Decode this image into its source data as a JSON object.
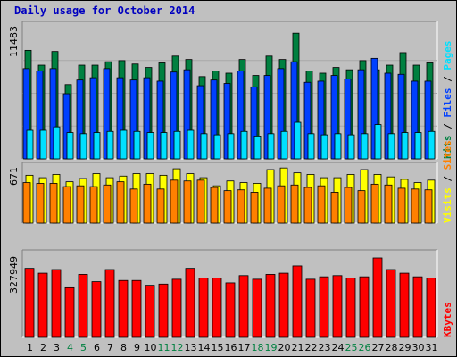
{
  "title": "Daily usage for October 2014",
  "colors": {
    "background": "#c0c0c0",
    "title": "#0000c0",
    "hits": "#008040",
    "files": "#0040ff",
    "pages": "#00e0ff",
    "visits": "#ffff00",
    "sites": "#ff8000",
    "kbytes": "#ff0000",
    "weekday_label": "#000000",
    "weekend_label": "#008040"
  },
  "legend": {
    "pages": "Pages",
    "files": "Files",
    "hits": "Hits",
    "sites": "Sites",
    "visits": "Visits",
    "kbytes": "KBytes",
    "sep": " / "
  },
  "chart_data": [
    {
      "type": "bar",
      "title": "Daily usage for October 2014",
      "max_label": "11483",
      "ylim": [
        0,
        11483
      ],
      "categories": [
        "1",
        "2",
        "3",
        "4",
        "5",
        "6",
        "7",
        "8",
        "9",
        "10",
        "11",
        "12",
        "13",
        "14",
        "15",
        "16",
        "17",
        "18",
        "19",
        "20",
        "21",
        "22",
        "23",
        "24",
        "25",
        "26",
        "27",
        "28",
        "29",
        "30",
        "31"
      ],
      "weekend_days": [
        "4",
        "5",
        "11",
        "12",
        "18",
        "19",
        "25",
        "26"
      ],
      "series": [
        {
          "name": "Hits",
          "values": [
            9500,
            8200,
            9400,
            6500,
            8200,
            8200,
            8500,
            8600,
            8300,
            8000,
            8400,
            9000,
            8700,
            7200,
            7700,
            7500,
            8700,
            7300,
            9000,
            8700,
            11000,
            7700,
            7500,
            8000,
            7800,
            8600,
            7800,
            8200,
            9300,
            8200,
            8400
          ]
        },
        {
          "name": "Files",
          "values": [
            7900,
            7700,
            7900,
            5700,
            6900,
            7100,
            7900,
            7100,
            6900,
            7100,
            6800,
            7600,
            7800,
            6400,
            6900,
            6600,
            7700,
            6300,
            7300,
            7900,
            8500,
            6700,
            6800,
            7300,
            7000,
            7800,
            8800,
            7500,
            7400,
            6800,
            6800
          ]
        },
        {
          "name": "Pages",
          "values": [
            2500,
            2500,
            2800,
            2300,
            2200,
            2300,
            2400,
            2500,
            2400,
            2300,
            2300,
            2400,
            2500,
            2200,
            2100,
            2200,
            2400,
            2000,
            2200,
            2400,
            3200,
            2200,
            2100,
            2200,
            2100,
            2200,
            3000,
            2200,
            2300,
            2300,
            2400
          ]
        }
      ]
    },
    {
      "type": "bar",
      "max_label": "671",
      "ylim": [
        0,
        671
      ],
      "categories": [
        "1",
        "2",
        "3",
        "4",
        "5",
        "6",
        "7",
        "8",
        "9",
        "10",
        "11",
        "12",
        "13",
        "14",
        "15",
        "16",
        "17",
        "18",
        "19",
        "20",
        "21",
        "22",
        "23",
        "24",
        "25",
        "26",
        "27",
        "28",
        "29",
        "30",
        "31"
      ],
      "series": [
        {
          "name": "Visits",
          "values": [
            590,
            560,
            600,
            510,
            550,
            610,
            560,
            580,
            610,
            610,
            590,
            670,
            610,
            560,
            460,
            520,
            500,
            490,
            660,
            680,
            620,
            600,
            560,
            560,
            600,
            660,
            600,
            570,
            540,
            500,
            530
          ]
        },
        {
          "name": "Sites",
          "values": [
            500,
            490,
            490,
            450,
            460,
            450,
            470,
            510,
            420,
            480,
            420,
            530,
            520,
            530,
            440,
            400,
            410,
            380,
            430,
            460,
            470,
            440,
            460,
            380,
            440,
            400,
            480,
            470,
            430,
            420,
            410
          ]
        }
      ]
    },
    {
      "type": "bar",
      "max_label": "327949",
      "ylim": [
        0,
        327949
      ],
      "categories": [
        "1",
        "2",
        "3",
        "4",
        "5",
        "6",
        "7",
        "8",
        "9",
        "10",
        "11",
        "12",
        "13",
        "14",
        "15",
        "16",
        "17",
        "18",
        "19",
        "20",
        "21",
        "22",
        "23",
        "24",
        "25",
        "26",
        "27",
        "28",
        "29",
        "30",
        "31"
      ],
      "series": [
        {
          "name": "KBytes",
          "values": [
            285000,
            265000,
            280000,
            205000,
            260000,
            230000,
            280000,
            235000,
            235000,
            215000,
            220000,
            240000,
            285000,
            245000,
            245000,
            225000,
            255000,
            240000,
            260000,
            265000,
            295000,
            240000,
            250000,
            255000,
            245000,
            250000,
            327949,
            280000,
            265000,
            250000,
            245000
          ]
        }
      ]
    }
  ]
}
